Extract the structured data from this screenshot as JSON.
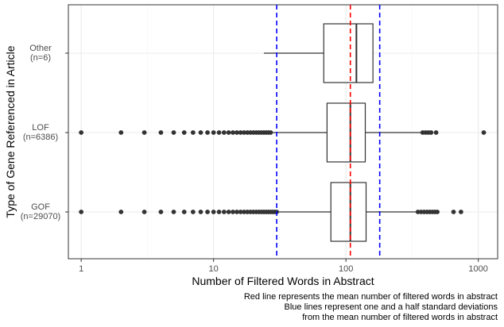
{
  "chart_data": {
    "type": "boxplot",
    "orientation": "horizontal",
    "x_scale": "log10",
    "xlabel": "Number of Filtered Words in Abstract",
    "ylabel": "Type of Gene Referenced in Article",
    "xlim": [
      0.8,
      1400
    ],
    "x_ticks": [
      {
        "value": 1,
        "label": "1"
      },
      {
        "value": 10,
        "label": "10"
      },
      {
        "value": 100,
        "label": "100"
      },
      {
        "value": 1000,
        "label": "1000"
      }
    ],
    "categories": [
      {
        "name": "Other",
        "label_lines": [
          "Other",
          "(n=6)"
        ]
      },
      {
        "name": "LOF",
        "label_lines": [
          "LOF",
          "(n=6386)"
        ]
      },
      {
        "name": "GOF",
        "label_lines": [
          "GOF",
          "(n=29070)"
        ]
      }
    ],
    "boxes": [
      {
        "category": "Other",
        "whisker_low": 24,
        "q1": 68,
        "median": 120,
        "q3": 160,
        "whisker_high": 160,
        "outliers": []
      },
      {
        "category": "LOF",
        "whisker_low": 28,
        "q1": 72,
        "median": 108,
        "q3": 140,
        "whisker_high": 370,
        "outliers": [
          1,
          2,
          3,
          4,
          5,
          6,
          7,
          8,
          9,
          10,
          11,
          12,
          13,
          14,
          15,
          16,
          17,
          18,
          19,
          20,
          21,
          22,
          23,
          24,
          25,
          26,
          27,
          380,
          400,
          420,
          440,
          480,
          1100
        ]
      },
      {
        "category": "GOF",
        "whisker_low": 31,
        "q1": 77,
        "median": 108,
        "q3": 142,
        "whisker_high": 345,
        "outliers": [
          1,
          2,
          3,
          4,
          5,
          6,
          7,
          8,
          9,
          10,
          11,
          12,
          13,
          14,
          15,
          16,
          17,
          18,
          19,
          20,
          21,
          22,
          23,
          24,
          25,
          26,
          27,
          28,
          29,
          30,
          350,
          370,
          390,
          410,
          430,
          450,
          470,
          490,
          650,
          740
        ]
      }
    ],
    "reference_lines": [
      {
        "name": "mean",
        "value": 108,
        "color": "#ff0000",
        "style": "dashed"
      },
      {
        "name": "mean-minus-1.5sd",
        "value": 30,
        "color": "#0000ff",
        "style": "dashed"
      },
      {
        "name": "mean-plus-1.5sd",
        "value": 180,
        "color": "#0000ff",
        "style": "dashed"
      }
    ],
    "grid": true,
    "caption": [
      "Red line represents the mean number of filtered words in abstract",
      "Blue lines represent one and a half standard deviations",
      "from the mean number of filtered words in abstract"
    ]
  },
  "colors": {
    "box_stroke": "#333333",
    "outlier": "#333333",
    "panel_border": "#333333",
    "grid_major": "#ebebeb",
    "grid_minor": "#f5f5f5"
  }
}
